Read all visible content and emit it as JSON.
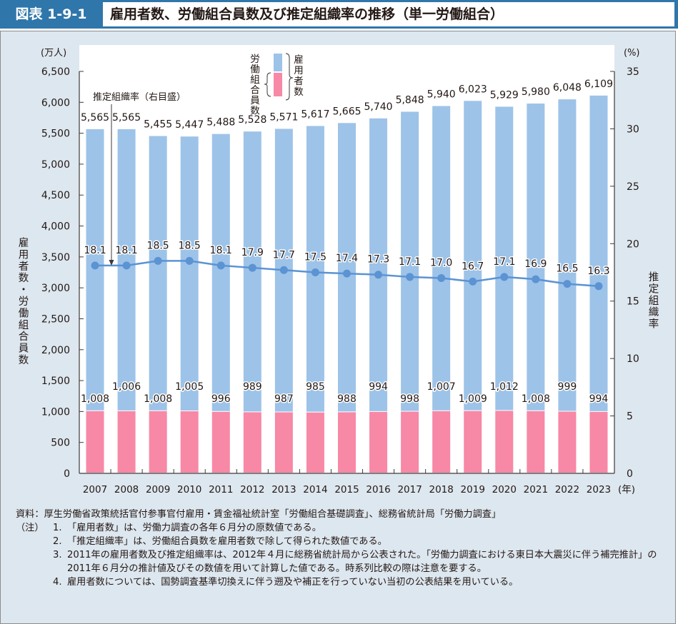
{
  "header": {
    "figure_number": "図表 1-9-1",
    "title": "雇用者数、労働組合員数及び推定組織率の推移（単一労働組合）"
  },
  "chart_data": {
    "type": "bar",
    "stacked": true,
    "categories": [
      "2007",
      "2008",
      "2009",
      "2010",
      "2011",
      "2012",
      "2013",
      "2014",
      "2015",
      "2016",
      "2017",
      "2018",
      "2019",
      "2020",
      "2021",
      "2022",
      "2023"
    ],
    "x_unit_label": "(年)",
    "series": [
      {
        "name": "労働組合員数",
        "type": "bar",
        "axis": "left",
        "color": "#f788a6",
        "values": [
          1008,
          1006,
          1008,
          1005,
          996,
          989,
          987,
          985,
          988,
          994,
          998,
          1007,
          1009,
          1012,
          1008,
          999,
          994
        ]
      },
      {
        "name": "雇用者数",
        "type": "bar",
        "axis": "left",
        "color": "#9dc3e8",
        "note": "total bar height = 雇用者数",
        "values": [
          5565,
          5565,
          5455,
          5447,
          5488,
          5528,
          5571,
          5617,
          5665,
          5740,
          5848,
          5940,
          6023,
          5929,
          5980,
          6048,
          6109
        ]
      },
      {
        "name": "推定組織率",
        "type": "line",
        "axis": "right",
        "color": "#5b93d3",
        "values": [
          18.1,
          18.1,
          18.5,
          18.5,
          18.1,
          17.9,
          17.7,
          17.5,
          17.4,
          17.3,
          17.1,
          17.0,
          16.7,
          17.1,
          16.9,
          16.5,
          16.3
        ]
      }
    ],
    "left_axis": {
      "label": "雇用者数・労働組合員数",
      "unit": "(万人)",
      "range": [
        0,
        6500
      ],
      "ticks": [
        0,
        500,
        1000,
        1500,
        2000,
        2500,
        3000,
        3500,
        4000,
        4500,
        5000,
        5500,
        6000,
        6500
      ],
      "tick_labels": [
        "0",
        "500",
        "1,000",
        "1,500",
        "2,000",
        "2,500",
        "3,000",
        "3,500",
        "4,000",
        "4,500",
        "5,000",
        "5,500",
        "6,000",
        "6,500"
      ]
    },
    "right_axis": {
      "label": "推定組織率",
      "unit": "(%)",
      "range": [
        0,
        35
      ],
      "ticks": [
        0,
        5,
        10,
        15,
        20,
        25,
        30,
        35
      ],
      "tick_labels": [
        "0",
        "5",
        "10",
        "15",
        "20",
        "25",
        "30",
        "35"
      ]
    },
    "employee_labels": [
      "5,565",
      "5,565",
      "5,455",
      "5,447",
      "5,488",
      "5,528",
      "5,571",
      "5,617",
      "5,665",
      "5,740",
      "5,848",
      "5,940",
      "6,023",
      "5,929",
      "5,980",
      "6,048",
      "6,109"
    ],
    "union_labels": [
      "1,008",
      "1,006",
      "1,008",
      "1,005",
      "996",
      "989",
      "987",
      "985",
      "988",
      "994",
      "998",
      "1,007",
      "1,009",
      "1,012",
      "1,008",
      "999",
      "994"
    ],
    "rate_labels": [
      "18.1",
      "18.1",
      "18.5",
      "18.5",
      "18.1",
      "17.9",
      "17.7",
      "17.5",
      "17.4",
      "17.3",
      "17.1",
      "17.0",
      "16.7",
      "17.1",
      "16.9",
      "16.5",
      "16.3"
    ],
    "legend": {
      "placement": "top-center",
      "employees_label": "雇用者数",
      "union_label": "労働組合員数"
    },
    "annotation": {
      "text": "推定組織率（右目盛）",
      "points_to": "2007-2008 rate line"
    },
    "grid": false
  },
  "notes": {
    "source_label": "資料：",
    "source_text": "厚生労働省政策統括官付参事官付雇用・賃金福祉統計室「労働組合基礎調査」、総務省統計局「労働力調査」",
    "notes_label": "（注）",
    "items": [
      {
        "num": "1.",
        "text": "「雇用者数」は、労働力調査の各年６月分の原数値である。"
      },
      {
        "num": "2.",
        "text": "「推定組織率」は、労働組合員数を雇用者数で除して得られた数値である。"
      },
      {
        "num": "3.",
        "text": "2011年の雇用者数及び推定組織率は、2012年４月に総務省統計局から公表された。「労働力調査における東日本大震災に伴う補完推計」の2011年６月分の推計値及びその数値を用いて計算した値である。時系列比較の際は注意を要する。"
      },
      {
        "num": "4.",
        "text": "雇用者数については、国勢調査基準切換えに伴う遡及や補正を行っていない当初の公表結果を用いている。"
      }
    ]
  }
}
